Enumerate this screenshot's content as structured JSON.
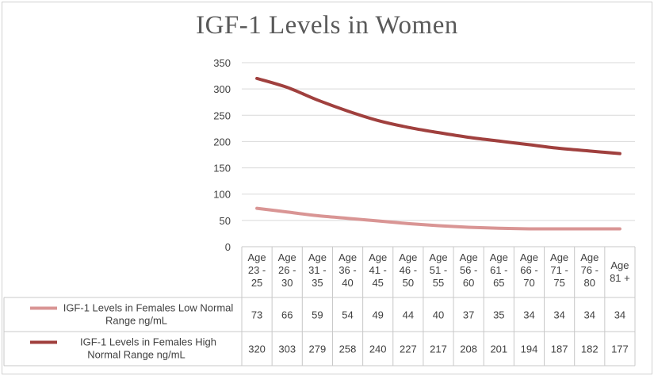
{
  "chart_data": {
    "type": "line",
    "title": "IGF-1 Levels in Women",
    "xlabel": "",
    "ylabel": "",
    "ylim": [
      0,
      350
    ],
    "yticks": [
      0,
      50,
      100,
      150,
      200,
      250,
      300,
      350
    ],
    "grid": true,
    "legend": "data-table",
    "categories": [
      [
        "Age",
        "23 -",
        "25"
      ],
      [
        "Age",
        "26 -",
        "30"
      ],
      [
        "Age",
        "31 -",
        "35"
      ],
      [
        "Age",
        "36 -",
        "40"
      ],
      [
        "Age",
        "41 -",
        "45"
      ],
      [
        "Age",
        "46 -",
        "50"
      ],
      [
        "Age",
        "51 -",
        "55"
      ],
      [
        "Age",
        "56 -",
        "60"
      ],
      [
        "Age",
        "61 -",
        "65"
      ],
      [
        "Age",
        "66 -",
        "70"
      ],
      [
        "Age",
        "71 -",
        "75"
      ],
      [
        "Age",
        "76 -",
        "80"
      ],
      [
        "Age",
        "81 +"
      ]
    ],
    "series": [
      {
        "name": [
          "IGF-1 Levels in Females Low Normal",
          "Range ng/mL"
        ],
        "color": "#d99594",
        "values": [
          73,
          66,
          59,
          54,
          49,
          44,
          40,
          37,
          35,
          34,
          34,
          34,
          34
        ]
      },
      {
        "name": [
          "IGF-1 Levels in Females High",
          "Normal Range ng/mL"
        ],
        "color": "#a0403e",
        "values": [
          320,
          303,
          279,
          258,
          240,
          227,
          217,
          208,
          201,
          194,
          187,
          182,
          177
        ]
      }
    ]
  }
}
